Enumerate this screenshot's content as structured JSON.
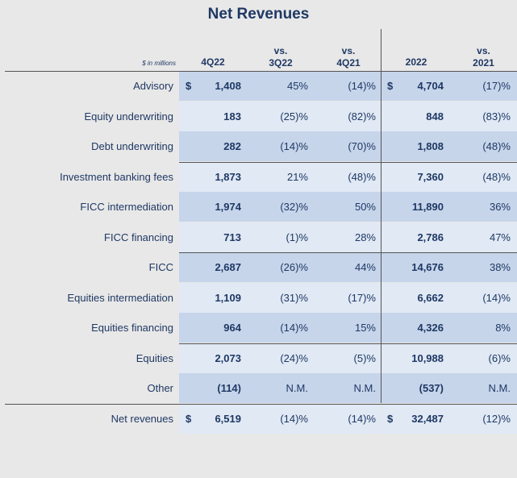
{
  "title": "Net Revenues",
  "units_label": "$ in millions",
  "headers": {
    "q4_22": "4Q22",
    "vs_3q22_top": "vs.",
    "vs_3q22_bottom": "3Q22",
    "vs_4q21_top": "vs.",
    "vs_4q21_bottom": "4Q21",
    "y2022": "2022",
    "vs_2021_top": "vs.",
    "vs_2021_bottom": "2021"
  },
  "currency_symbol": "$",
  "rows": [
    {
      "label": "Advisory",
      "q4_22": "1,408",
      "vs_3q22": "45%",
      "vs_4q21": "(14)%",
      "y2022": "4,704",
      "vs_2021": "(17)%"
    },
    {
      "label": "Equity underwriting",
      "q4_22": "183",
      "vs_3q22": "(25)%",
      "vs_4q21": "(82)%",
      "y2022": "848",
      "vs_2021": "(83)%"
    },
    {
      "label": "Debt underwriting",
      "q4_22": "282",
      "vs_3q22": "(14)%",
      "vs_4q21": "(70)%",
      "y2022": "1,808",
      "vs_2021": "(48)%"
    },
    {
      "label": "Investment banking fees",
      "q4_22": "1,873",
      "vs_3q22": "21%",
      "vs_4q21": "(48)%",
      "y2022": "7,360",
      "vs_2021": "(48)%"
    },
    {
      "label": "FICC intermediation",
      "q4_22": "1,974",
      "vs_3q22": "(32)%",
      "vs_4q21": "50%",
      "y2022": "11,890",
      "vs_2021": "36%"
    },
    {
      "label": "FICC financing",
      "q4_22": "713",
      "vs_3q22": "(1)%",
      "vs_4q21": "28%",
      "y2022": "2,786",
      "vs_2021": "47%"
    },
    {
      "label": "FICC",
      "q4_22": "2,687",
      "vs_3q22": "(26)%",
      "vs_4q21": "44%",
      "y2022": "14,676",
      "vs_2021": "38%"
    },
    {
      "label": "Equities intermediation",
      "q4_22": "1,109",
      "vs_3q22": "(31)%",
      "vs_4q21": "(17)%",
      "y2022": "6,662",
      "vs_2021": "(14)%"
    },
    {
      "label": "Equities financing",
      "q4_22": "964",
      "vs_3q22": "(14)%",
      "vs_4q21": "15%",
      "y2022": "4,326",
      "vs_2021": "8%"
    },
    {
      "label": "Equities",
      "q4_22": "2,073",
      "vs_3q22": "(24)%",
      "vs_4q21": "(5)%",
      "y2022": "10,988",
      "vs_2021": "(6)%"
    },
    {
      "label": "Other",
      "q4_22": "(114)",
      "vs_3q22": "N.M.",
      "vs_4q21": "N.M.",
      "y2022": "(537)",
      "vs_2021": "N.M."
    },
    {
      "label": "Net revenues",
      "q4_22": "6,519",
      "vs_3q22": "(14)%",
      "vs_4q21": "(14)%",
      "y2022": "32,487",
      "vs_2021": "(12)%"
    }
  ]
}
